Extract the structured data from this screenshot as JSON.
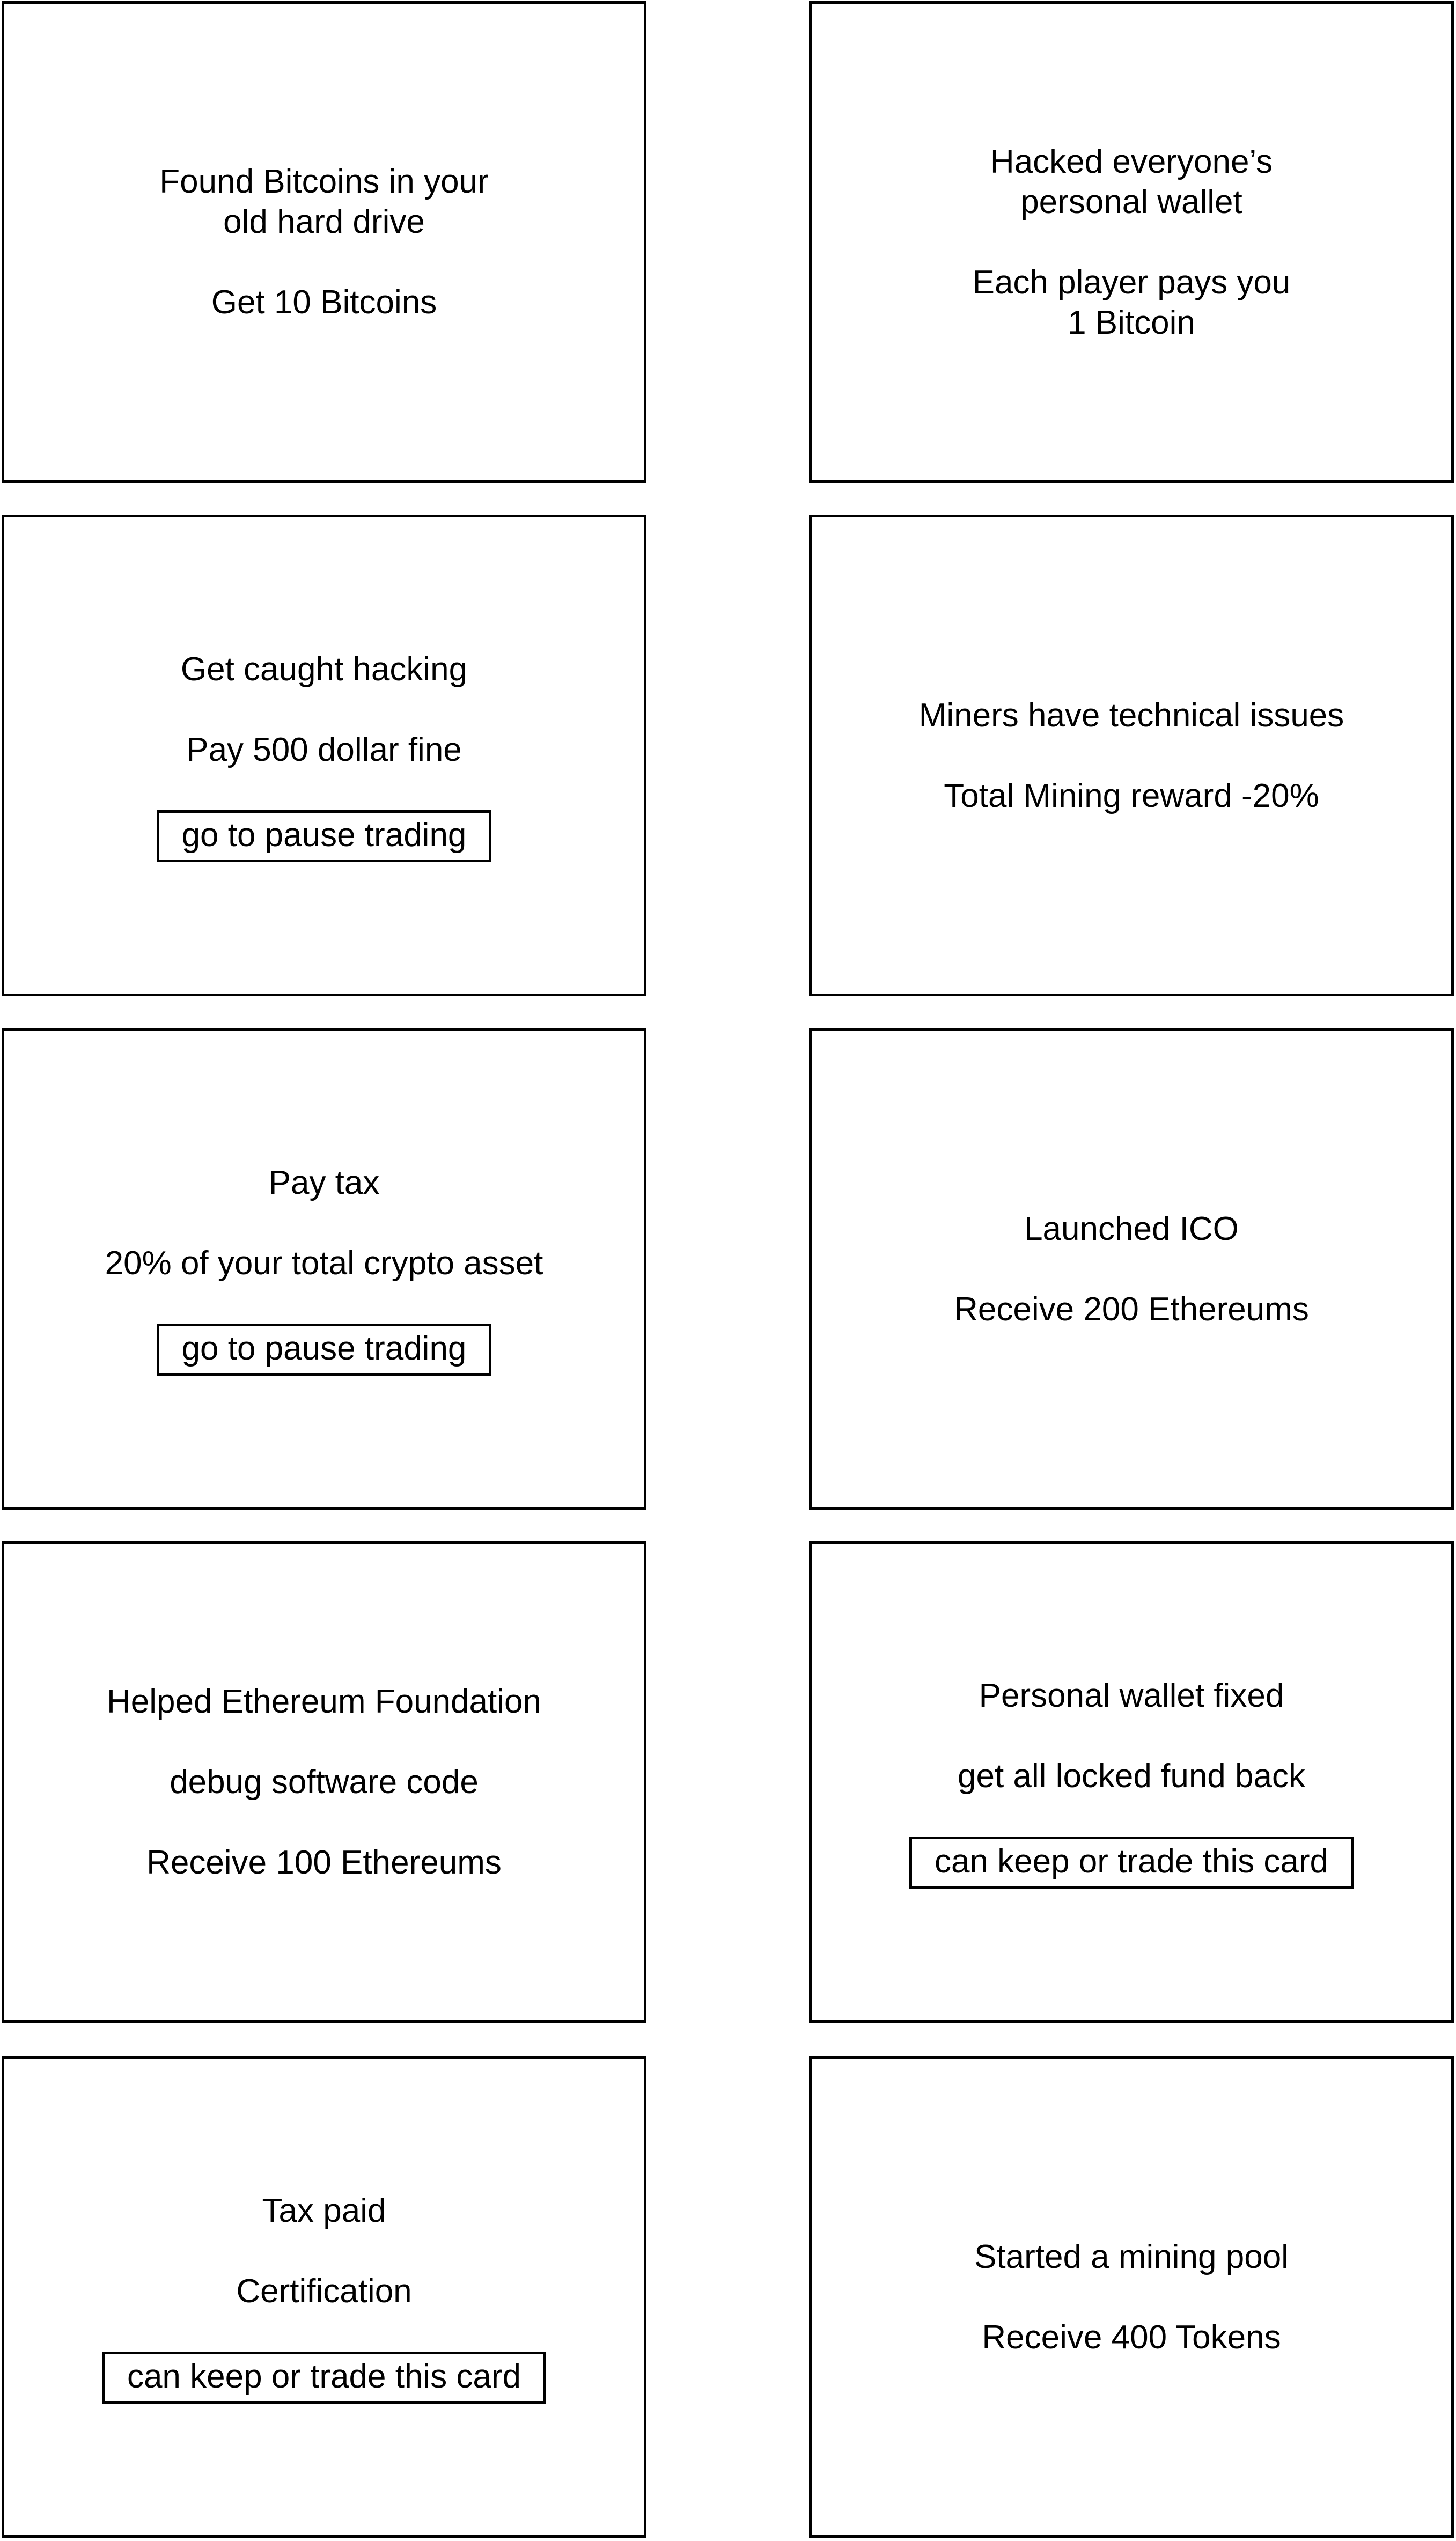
{
  "cards": [
    {
      "line1": "Found Bitcoins in your",
      "line2": "old hard drive",
      "line3": "Get 10 Bitcoins"
    },
    {
      "line1": "Hacked everyone’s",
      "line2": "personal wallet",
      "line3": "Each player pays you",
      "line4": "1 Bitcoin"
    },
    {
      "line1": "Get caught hacking",
      "line2": "Pay 500 dollar fine",
      "boxed": "go to pause trading"
    },
    {
      "line1": "Miners have technical issues",
      "line2": "Total Mining reward -20%"
    },
    {
      "line1": "Pay tax",
      "line2": "20% of your total crypto asset",
      "boxed": "go to pause trading"
    },
    {
      "line1": "Launched ICO",
      "line2": "Receive 200 Ethereums"
    },
    {
      "line1": "Helped Ethereum Foundation",
      "line2": "debug software code",
      "line3": "Receive 100 Ethereums"
    },
    {
      "line1": "Personal wallet fixed",
      "line2": "get all locked fund back",
      "boxed": "can keep or trade this card"
    },
    {
      "line1": "Tax paid",
      "line2": "Certification",
      "boxed": "can keep or trade this card"
    },
    {
      "line1": "Started a mining pool",
      "line2": "Receive 400 Tokens"
    }
  ]
}
